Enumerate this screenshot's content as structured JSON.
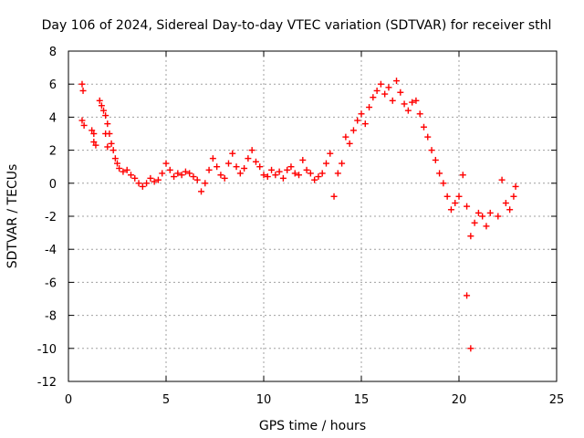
{
  "chart_data": {
    "type": "scatter",
    "title": "Day 106 of 2024, Sidereal Day-to-day VTEC variation (SDTVAR) for receiver sthl",
    "xlabel": "GPS time / hours",
    "ylabel": "SDTVAR / TECUs",
    "xlim": [
      0,
      25
    ],
    "ylim": [
      -12,
      8
    ],
    "xticks": [
      "0",
      "5",
      "10",
      "15",
      "20",
      "25"
    ],
    "yticks": [
      "8",
      "6",
      "4",
      "2",
      "0",
      "-2",
      "-4",
      "-6",
      "-8",
      "-10",
      "-12"
    ],
    "grid": true,
    "marker": "+",
    "color": "#ff0000",
    "series": [
      {
        "name": "sthl",
        "points": [
          [
            0.7,
            6.0
          ],
          [
            0.75,
            5.6
          ],
          [
            0.7,
            3.8
          ],
          [
            0.8,
            3.5
          ],
          [
            1.2,
            3.2
          ],
          [
            1.3,
            3.0
          ],
          [
            1.3,
            2.5
          ],
          [
            1.4,
            2.3
          ],
          [
            1.6,
            5.0
          ],
          [
            1.7,
            4.7
          ],
          [
            1.8,
            4.4
          ],
          [
            1.9,
            4.1
          ],
          [
            2.0,
            3.6
          ],
          [
            2.1,
            3.0
          ],
          [
            2.2,
            2.4
          ],
          [
            2.3,
            2.0
          ],
          [
            1.9,
            3.0
          ],
          [
            2.0,
            2.2
          ],
          [
            2.4,
            1.5
          ],
          [
            2.5,
            1.2
          ],
          [
            2.6,
            0.9
          ],
          [
            2.8,
            0.7
          ],
          [
            3.0,
            0.8
          ],
          [
            3.2,
            0.5
          ],
          [
            3.4,
            0.3
          ],
          [
            3.6,
            0.0
          ],
          [
            3.8,
            -0.2
          ],
          [
            4.0,
            0.0
          ],
          [
            4.2,
            0.3
          ],
          [
            4.4,
            0.1
          ],
          [
            4.6,
            0.2
          ],
          [
            4.8,
            0.6
          ],
          [
            5.0,
            1.2
          ],
          [
            5.2,
            0.8
          ],
          [
            5.4,
            0.4
          ],
          [
            5.6,
            0.6
          ],
          [
            5.8,
            0.5
          ],
          [
            6.0,
            0.7
          ],
          [
            6.2,
            0.6
          ],
          [
            6.4,
            0.4
          ],
          [
            6.6,
            0.2
          ],
          [
            6.8,
            -0.5
          ],
          [
            7.0,
            0.0
          ],
          [
            7.2,
            0.8
          ],
          [
            7.4,
            1.5
          ],
          [
            7.6,
            1.0
          ],
          [
            7.8,
            0.5
          ],
          [
            8.0,
            0.3
          ],
          [
            8.2,
            1.2
          ],
          [
            8.4,
            1.8
          ],
          [
            8.6,
            1.0
          ],
          [
            8.8,
            0.6
          ],
          [
            9.0,
            0.9
          ],
          [
            9.2,
            1.5
          ],
          [
            9.4,
            2.0
          ],
          [
            9.6,
            1.3
          ],
          [
            9.8,
            1.0
          ],
          [
            10.0,
            0.5
          ],
          [
            10.2,
            0.4
          ],
          [
            10.4,
            0.8
          ],
          [
            10.6,
            0.5
          ],
          [
            10.8,
            0.7
          ],
          [
            11.0,
            0.3
          ],
          [
            11.2,
            0.8
          ],
          [
            11.4,
            1.0
          ],
          [
            11.6,
            0.6
          ],
          [
            11.8,
            0.5
          ],
          [
            12.0,
            1.4
          ],
          [
            12.2,
            0.8
          ],
          [
            12.4,
            0.6
          ],
          [
            12.6,
            0.2
          ],
          [
            12.8,
            0.4
          ],
          [
            13.0,
            0.6
          ],
          [
            13.2,
            1.2
          ],
          [
            13.4,
            1.8
          ],
          [
            13.6,
            -0.8
          ],
          [
            13.8,
            0.6
          ],
          [
            14.0,
            1.2
          ],
          [
            14.2,
            2.8
          ],
          [
            14.4,
            2.4
          ],
          [
            14.6,
            3.2
          ],
          [
            14.8,
            3.8
          ],
          [
            15.0,
            4.2
          ],
          [
            15.2,
            3.6
          ],
          [
            15.4,
            4.6
          ],
          [
            15.6,
            5.2
          ],
          [
            15.8,
            5.6
          ],
          [
            16.0,
            6.0
          ],
          [
            16.2,
            5.4
          ],
          [
            16.4,
            5.8
          ],
          [
            16.6,
            5.0
          ],
          [
            16.8,
            6.2
          ],
          [
            17.0,
            5.5
          ],
          [
            17.2,
            4.8
          ],
          [
            17.4,
            4.4
          ],
          [
            17.6,
            4.9
          ],
          [
            17.8,
            5.0
          ],
          [
            18.0,
            4.2
          ],
          [
            18.2,
            3.4
          ],
          [
            18.4,
            2.8
          ],
          [
            18.6,
            2.0
          ],
          [
            18.8,
            1.4
          ],
          [
            19.0,
            0.6
          ],
          [
            19.2,
            0.0
          ],
          [
            19.4,
            -0.8
          ],
          [
            19.6,
            -1.6
          ],
          [
            19.8,
            -1.2
          ],
          [
            20.0,
            -0.8
          ],
          [
            20.2,
            0.5
          ],
          [
            20.4,
            -1.4
          ],
          [
            20.6,
            -3.2
          ],
          [
            20.8,
            -2.4
          ],
          [
            21.0,
            -1.8
          ],
          [
            21.2,
            -2.0
          ],
          [
            21.4,
            -2.6
          ],
          [
            21.6,
            -1.8
          ],
          [
            22.0,
            -2.0
          ],
          [
            22.2,
            0.2
          ],
          [
            22.4,
            -1.2
          ],
          [
            22.6,
            -1.6
          ],
          [
            22.8,
            -0.8
          ],
          [
            22.9,
            -0.2
          ],
          [
            20.4,
            -6.8
          ],
          [
            20.6,
            -10.0
          ]
        ]
      }
    ]
  }
}
